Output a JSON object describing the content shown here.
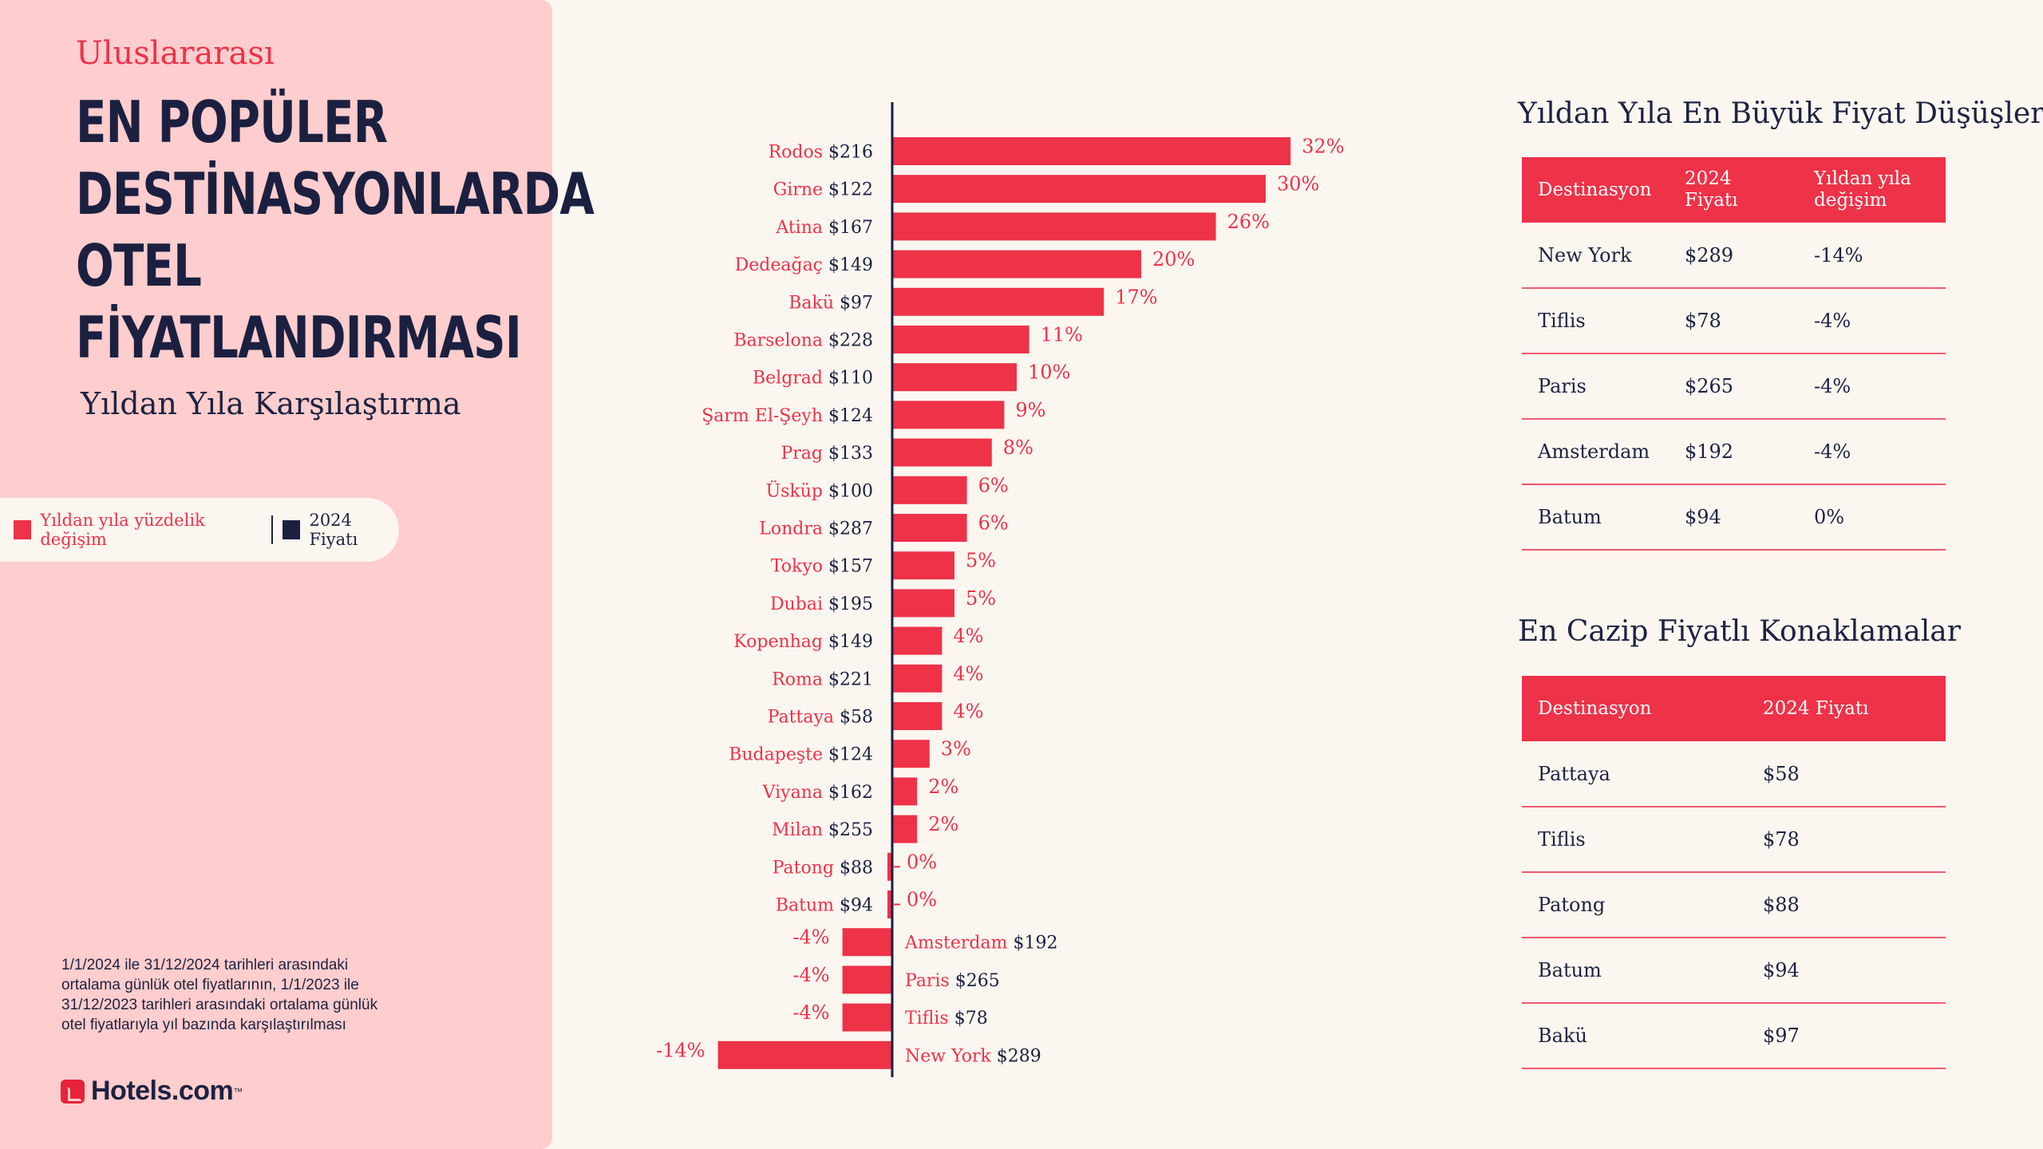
{
  "header": {
    "eyebrow": "Uluslararası",
    "title_lines": [
      "EN POPÜLER",
      "DESTİNASYONLARDA",
      "OTEL",
      "FİYATLANDIRMASI"
    ],
    "subtitle": "Yıldan Yıla Karşılaştırma"
  },
  "legend": {
    "pct_label": "Yıldan yıla yüzdelik değişim",
    "price_label": "2024 Fiyatı",
    "pct_color": "#ee3248",
    "price_color": "#1b2040"
  },
  "footnote": "1/1/2024 ile 31/12/2024 tarihleri arasındaki ortalama günlük otel fiyatlarının, 1/1/2023 ile 31/12/2023 tarihleri arasındaki ortalama günlük otel fiyatlarıyla yıl bazında karşılaştırılması",
  "brand": {
    "name": "Hotels.com",
    "tm": "™"
  },
  "chart_data": {
    "type": "bar",
    "orientation": "horizontal",
    "xlim": [
      -14,
      32
    ],
    "unit": "%",
    "bar_color": "#ee3248",
    "axis_color": "#1b2040",
    "categories": [
      "Rodos",
      "Girne",
      "Atina",
      "Dedeağaç",
      "Bakü",
      "Barselona",
      "Belgrad",
      "Şarm El-Şeyh",
      "Prag",
      "Üsküp",
      "Londra",
      "Tokyo",
      "Dubai",
      "Kopenhag",
      "Roma",
      "Pattaya",
      "Budapeşte",
      "Viyana",
      "Milan",
      "Patong",
      "Batum",
      "Amsterdam",
      "Paris",
      "Tiflis",
      "New York"
    ],
    "prices": [
      "$216",
      "$122",
      "$167",
      "$149",
      "$97",
      "$228",
      "$110",
      "$124",
      "$133",
      "$100",
      "$287",
      "$157",
      "$195",
      "$149",
      "$221",
      "$58",
      "$124",
      "$162",
      "$255",
      "$88",
      "$94",
      "$192",
      "$265",
      "$78",
      "$289"
    ],
    "values": [
      32,
      30,
      26,
      20,
      17,
      11,
      10,
      9,
      8,
      6,
      6,
      5,
      5,
      4,
      4,
      4,
      3,
      2,
      2,
      0,
      0,
      -4,
      -4,
      -4,
      -14
    ],
    "value_labels": [
      "32%",
      "30%",
      "26%",
      "20%",
      "17%",
      "11%",
      "10%",
      "9%",
      "8%",
      "6%",
      "6%",
      "5%",
      "5%",
      "4%",
      "4%",
      "4%",
      "3%",
      "2%",
      "2%",
      "0%",
      "0%",
      "-4%",
      "-4%",
      "-4%",
      "-14%"
    ]
  },
  "drops_table": {
    "title": "Yıldan Yıla En Büyük Fiyat Düşüşleri",
    "headers": [
      "Destinasyon",
      "2024 Fiyatı",
      "Yıldan yıla değişim"
    ],
    "rows": [
      [
        "New York",
        "$289",
        "-14%"
      ],
      [
        "Tiflis",
        "$78",
        "-4%"
      ],
      [
        "Paris",
        "$265",
        "-4%"
      ],
      [
        "Amsterdam",
        "$192",
        "-4%"
      ],
      [
        "Batum",
        "$94",
        "0%"
      ]
    ]
  },
  "cheap_table": {
    "title": "En Cazip Fiyatlı Konaklamalar",
    "headers": [
      "Destinasyon",
      "2024 Fiyatı"
    ],
    "rows": [
      [
        "Pattaya",
        "$58"
      ],
      [
        "Tiflis",
        "$78"
      ],
      [
        "Patong",
        "$88"
      ],
      [
        "Batum",
        "$94"
      ],
      [
        "Bakü",
        "$97"
      ]
    ]
  }
}
